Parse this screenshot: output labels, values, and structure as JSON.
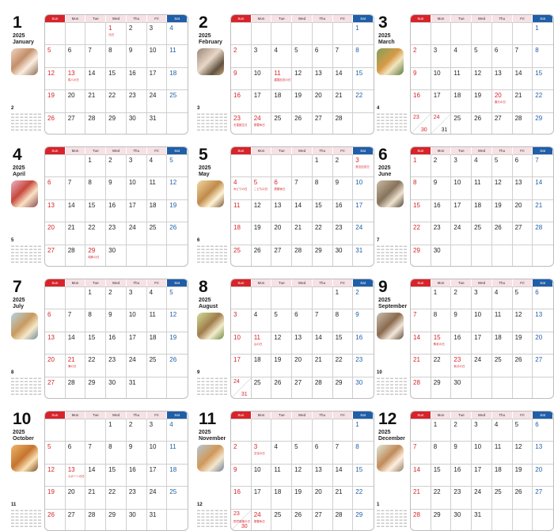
{
  "year": "2025",
  "weekdays": [
    "Sun",
    "Mon",
    "Tue",
    "Wed",
    "Thu",
    "Fri",
    "Sat"
  ],
  "months": [
    {
      "num": "1",
      "name": "January",
      "next": "2",
      "start": 3,
      "days": 31,
      "notes": {
        "1": "元日",
        "13": "成人の日"
      },
      "doubles": []
    },
    {
      "num": "2",
      "name": "February",
      "next": "3",
      "start": 6,
      "days": 28,
      "notes": {
        "11": "建国記念の日",
        "23": "天皇誕生日",
        "24": "振替休日"
      },
      "doubles": []
    },
    {
      "num": "3",
      "name": "March",
      "next": "4",
      "start": 6,
      "days": 31,
      "notes": {
        "20": "春分の日"
      },
      "doubles": [
        [
          23,
          30
        ],
        [
          24,
          31
        ]
      ]
    },
    {
      "num": "4",
      "name": "April",
      "next": "5",
      "start": 2,
      "days": 30,
      "notes": {
        "29": "昭和の日"
      },
      "doubles": []
    },
    {
      "num": "5",
      "name": "May",
      "next": "6",
      "start": 4,
      "days": 31,
      "notes": {
        "3": "憲法記念日",
        "4": "みどりの日",
        "5": "こどもの日",
        "6": "振替休日"
      },
      "doubles": []
    },
    {
      "num": "6",
      "name": "June",
      "next": "7",
      "start": 0,
      "days": 30,
      "notes": {},
      "doubles": []
    },
    {
      "num": "7",
      "name": "July",
      "next": "8",
      "start": 2,
      "days": 31,
      "notes": {
        "21": "海の日"
      },
      "doubles": []
    },
    {
      "num": "8",
      "name": "August",
      "next": "9",
      "start": 5,
      "days": 31,
      "notes": {
        "11": "山の日"
      },
      "doubles": [
        [
          24,
          31
        ]
      ]
    },
    {
      "num": "9",
      "name": "September",
      "next": "10",
      "start": 1,
      "days": 30,
      "notes": {
        "15": "敬老の日",
        "23": "秋分の日"
      },
      "doubles": []
    },
    {
      "num": "10",
      "name": "October",
      "next": "11",
      "start": 3,
      "days": 31,
      "notes": {
        "13": "スポーツの日"
      },
      "doubles": []
    },
    {
      "num": "11",
      "name": "November",
      "next": "12",
      "start": 6,
      "days": 30,
      "notes": {
        "3": "文化の日",
        "23": "勤労感謝の日",
        "24": "振替休日"
      },
      "doubles": [
        [
          23,
          30
        ]
      ]
    },
    {
      "num": "12",
      "name": "December",
      "next": "1",
      "start": 1,
      "days": 31,
      "notes": {},
      "doubles": []
    }
  ]
}
